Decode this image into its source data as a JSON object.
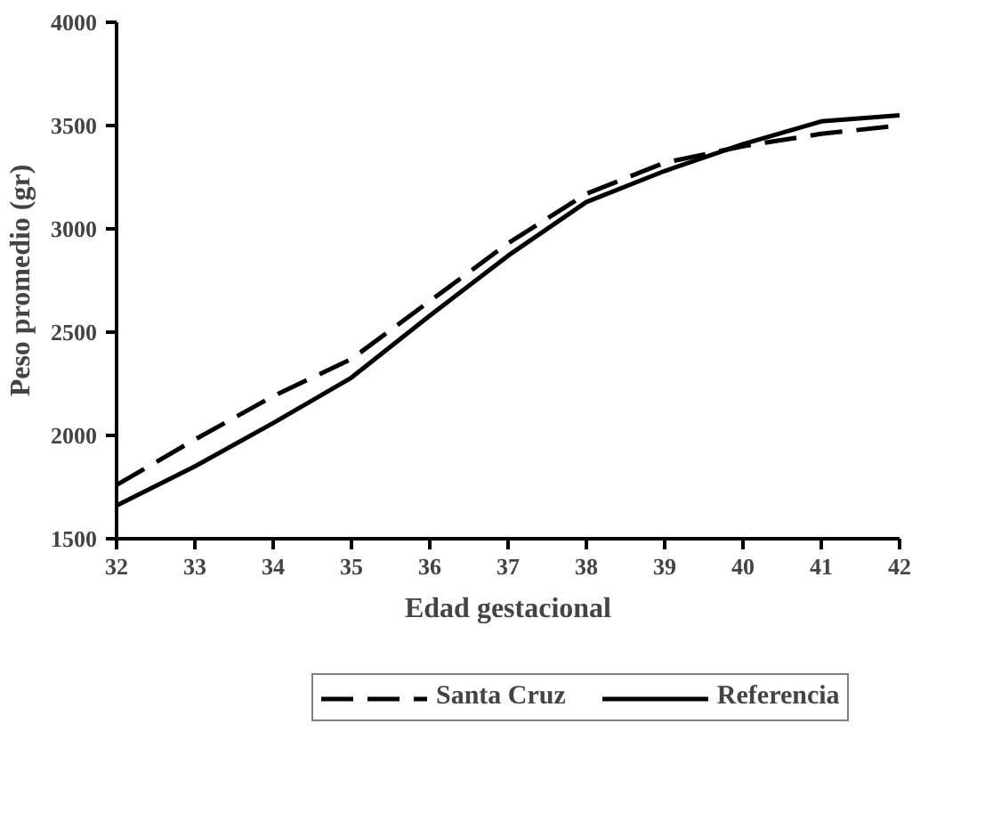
{
  "chart_data": {
    "type": "line",
    "xlabel": "Edad gestacional",
    "ylabel": "Peso promedio (gr)",
    "x": [
      32,
      33,
      34,
      35,
      36,
      37,
      38,
      39,
      40,
      41,
      42
    ],
    "series": [
      {
        "name": "Santa Cruz",
        "color": "#000000",
        "line_style": "dashed",
        "values": [
          1760,
          1980,
          2190,
          2370,
          2650,
          2930,
          3170,
          3320,
          3400,
          3460,
          3500
        ]
      },
      {
        "name": "Referencia",
        "color": "#000000",
        "line_style": "solid",
        "values": [
          1660,
          1850,
          2060,
          2280,
          2580,
          2870,
          3130,
          3280,
          3410,
          3520,
          3550
        ]
      }
    ],
    "xlim": [
      32,
      42
    ],
    "xticks": [
      32,
      33,
      34,
      35,
      36,
      37,
      38,
      39,
      40,
      41,
      42
    ],
    "ylim": [
      1500,
      4000
    ],
    "yticks": [
      1500,
      2000,
      2500,
      3000,
      3500,
      4000
    ],
    "grid": false,
    "legend": "bottom",
    "marker": "none"
  }
}
